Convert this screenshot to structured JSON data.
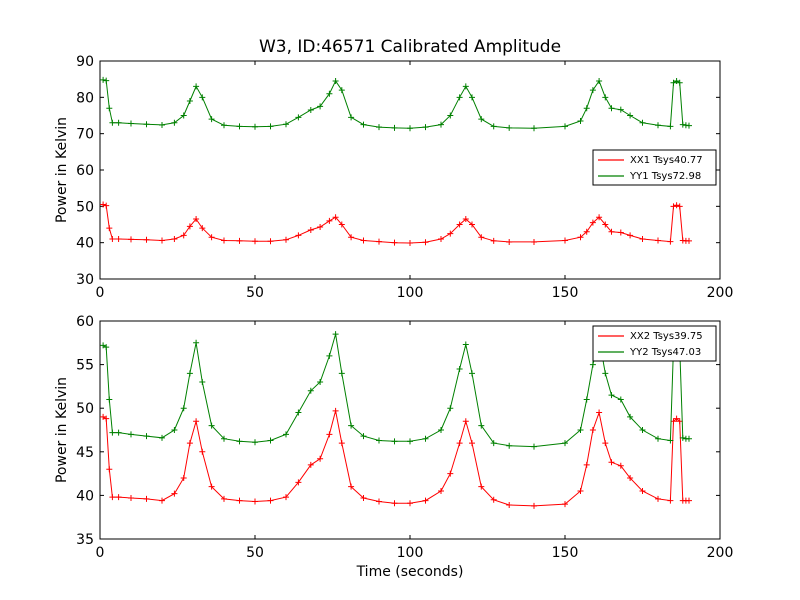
{
  "chart_data": {
    "type": "line",
    "title": "W3, ID:46571 Calibrated Amplitude",
    "xlabel": "Time (seconds)",
    "panels": [
      {
        "ylabel": "Power in Kelvin",
        "xlim": [
          0,
          200
        ],
        "ylim": [
          30,
          90
        ],
        "xticks": [
          "0",
          "50",
          "100",
          "150",
          "200"
        ],
        "yticks": [
          "30",
          "40",
          "50",
          "60",
          "70",
          "80",
          "90"
        ],
        "legend_position": "right",
        "series": [
          {
            "name": "XX1 Tsys40.77",
            "color": "#ff0000",
            "x": [
              1,
              2,
              3,
              4,
              6,
              10,
              15,
              20,
              24,
              27,
              29,
              31,
              33,
              36,
              40,
              45,
              50,
              55,
              60,
              64,
              68,
              71,
              74,
              76,
              78,
              81,
              85,
              90,
              95,
              100,
              105,
              110,
              113,
              116,
              118,
              120,
              123,
              127,
              132,
              140,
              150,
              155,
              157,
              159,
              161,
              163,
              165,
              168,
              171,
              175,
              180,
              184,
              185,
              186,
              187,
              188,
              189,
              190
            ],
            "y": [
              50.5,
              50.2,
              44,
              41,
              41,
              40.9,
              40.8,
              40.6,
              41,
              42,
              44.5,
              46.5,
              44,
              41.5,
              40.6,
              40.5,
              40.4,
              40.4,
              40.8,
              42,
              43.5,
              44.3,
              46,
              47,
              45,
              41.5,
              40.6,
              40.3,
              40,
              39.9,
              40.1,
              41,
              42.5,
              45,
              46.5,
              45,
              41.5,
              40.5,
              40.2,
              40.2,
              40.6,
              41.5,
              43,
              45.5,
              47,
              45,
              43,
              42.8,
              42,
              41,
              40.6,
              40.3,
              50,
              50.3,
              50,
              40.6,
              40.5,
              40.5
            ]
          },
          {
            "name": "YY1 Tsys72.98",
            "color": "#008000",
            "x": [
              1,
              2,
              3,
              4,
              6,
              10,
              15,
              20,
              24,
              27,
              29,
              31,
              33,
              36,
              40,
              45,
              50,
              55,
              60,
              64,
              68,
              71,
              74,
              76,
              78,
              81,
              85,
              90,
              95,
              100,
              105,
              110,
              113,
              116,
              118,
              120,
              123,
              127,
              132,
              140,
              150,
              155,
              157,
              159,
              161,
              163,
              165,
              168,
              171,
              175,
              180,
              184,
              185,
              186,
              187,
              188,
              189,
              190
            ],
            "y": [
              84.8,
              84.6,
              77,
              73,
              73,
              72.8,
              72.6,
              72.4,
              73,
              75,
              79,
              83,
              80,
              74,
              72.3,
              72,
              71.9,
              72,
              72.6,
              74.5,
              76.5,
              77.5,
              81,
              84.5,
              82,
              74.5,
              72.5,
              71.8,
              71.6,
              71.5,
              71.8,
              72.5,
              75,
              80,
              83,
              80,
              74,
              72,
              71.6,
              71.5,
              72,
              73.5,
              77,
              82,
              84.5,
              80,
              77,
              76.6,
              75,
              73,
              72.3,
              72,
              84,
              84.5,
              84,
              72.5,
              72.3,
              72.2
            ]
          }
        ]
      },
      {
        "ylabel": "Power in Kelvin",
        "xlim": [
          0,
          200
        ],
        "ylim": [
          35,
          60
        ],
        "xticks": [
          "0",
          "50",
          "100",
          "150",
          "200"
        ],
        "yticks": [
          "35",
          "40",
          "45",
          "50",
          "55",
          "60"
        ],
        "legend_position": "top-right",
        "series": [
          {
            "name": "XX2 Tsys39.75",
            "color": "#ff0000",
            "x": [
              1,
              2,
              3,
              4,
              6,
              10,
              15,
              20,
              24,
              27,
              29,
              31,
              33,
              36,
              40,
              45,
              50,
              55,
              60,
              64,
              68,
              71,
              74,
              76,
              78,
              81,
              85,
              90,
              95,
              100,
              105,
              110,
              113,
              116,
              118,
              120,
              123,
              127,
              132,
              140,
              150,
              155,
              157,
              159,
              161,
              163,
              165,
              168,
              171,
              175,
              180,
              184,
              185,
              186,
              187,
              188,
              189,
              190
            ],
            "y": [
              49,
              48.8,
              43,
              39.8,
              39.8,
              39.7,
              39.6,
              39.4,
              40.2,
              42,
              46,
              48.5,
              45,
              41,
              39.6,
              39.4,
              39.3,
              39.4,
              39.8,
              41.5,
              43.5,
              44.2,
              47,
              49.7,
              46,
              41,
              39.7,
              39.3,
              39.1,
              39.1,
              39.4,
              40.5,
              42.5,
              46,
              48.5,
              46,
              41,
              39.5,
              38.9,
              38.8,
              39,
              40.5,
              43.5,
              47.5,
              49.5,
              46,
              43.8,
              43.4,
              42,
              40.5,
              39.6,
              39.4,
              48.5,
              48.8,
              48.5,
              39.4,
              39.4,
              39.4
            ]
          },
          {
            "name": "YY2 Tsys47.03",
            "color": "#008000",
            "x": [
              1,
              2,
              3,
              4,
              6,
              10,
              15,
              20,
              24,
              27,
              29,
              31,
              33,
              36,
              40,
              45,
              50,
              55,
              60,
              64,
              68,
              71,
              74,
              76,
              78,
              81,
              85,
              90,
              95,
              100,
              105,
              110,
              113,
              116,
              118,
              120,
              123,
              127,
              132,
              140,
              150,
              155,
              157,
              159,
              161,
              163,
              165,
              168,
              171,
              175,
              180,
              184,
              185,
              186,
              187,
              188,
              189,
              190
            ],
            "y": [
              57.2,
              57,
              51,
              47.2,
              47.2,
              47,
              46.8,
              46.6,
              47.5,
              50,
              54,
              57.5,
              53,
              48,
              46.5,
              46.2,
              46.1,
              46.3,
              47,
              49.5,
              52,
              53,
              56,
              58.5,
              54,
              48,
              46.8,
              46.3,
              46.2,
              46.2,
              46.5,
              47.5,
              50,
              54.5,
              57.3,
              54,
              48,
              46,
              45.7,
              45.6,
              46,
              47.5,
              51,
              55,
              58,
              54,
              51.5,
              51,
              49,
              47.5,
              46.5,
              46.3,
              57,
              57.5,
              57,
              46.6,
              46.5,
              46.5
            ]
          }
        ]
      }
    ]
  }
}
